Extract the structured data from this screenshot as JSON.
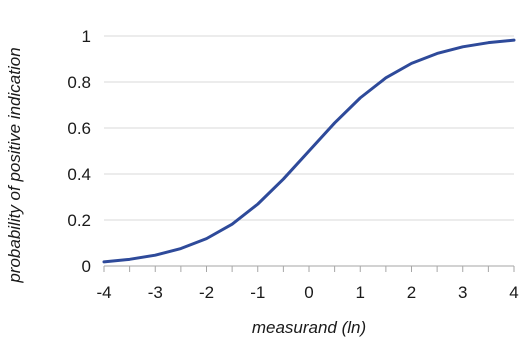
{
  "chart_data": {
    "type": "line",
    "xlabel": "measurand (ln)",
    "ylabel": "probability of positive indication",
    "xlim": [
      -4,
      4
    ],
    "ylim": [
      0,
      1
    ],
    "x_ticks": [
      "-4",
      "-3",
      "-2",
      "-1",
      "0",
      "1",
      "2",
      "3",
      "4"
    ],
    "y_ticks": [
      "0",
      "0.2",
      "0.4",
      "0.6",
      "0.8",
      "1"
    ],
    "x_minor_step": 0.5,
    "grid": "horizontal",
    "legend": "none",
    "series": [
      {
        "color": "#2e4a9a",
        "x": [
          -4,
          -3.5,
          -3,
          -2.5,
          -2,
          -1.5,
          -1,
          -0.5,
          0,
          0.5,
          1,
          1.5,
          2,
          2.5,
          3,
          3.5,
          4
        ],
        "y": [
          0.018,
          0.029,
          0.047,
          0.076,
          0.119,
          0.182,
          0.269,
          0.378,
          0.5,
          0.622,
          0.731,
          0.818,
          0.881,
          0.924,
          0.953,
          0.971,
          0.982
        ]
      }
    ]
  }
}
